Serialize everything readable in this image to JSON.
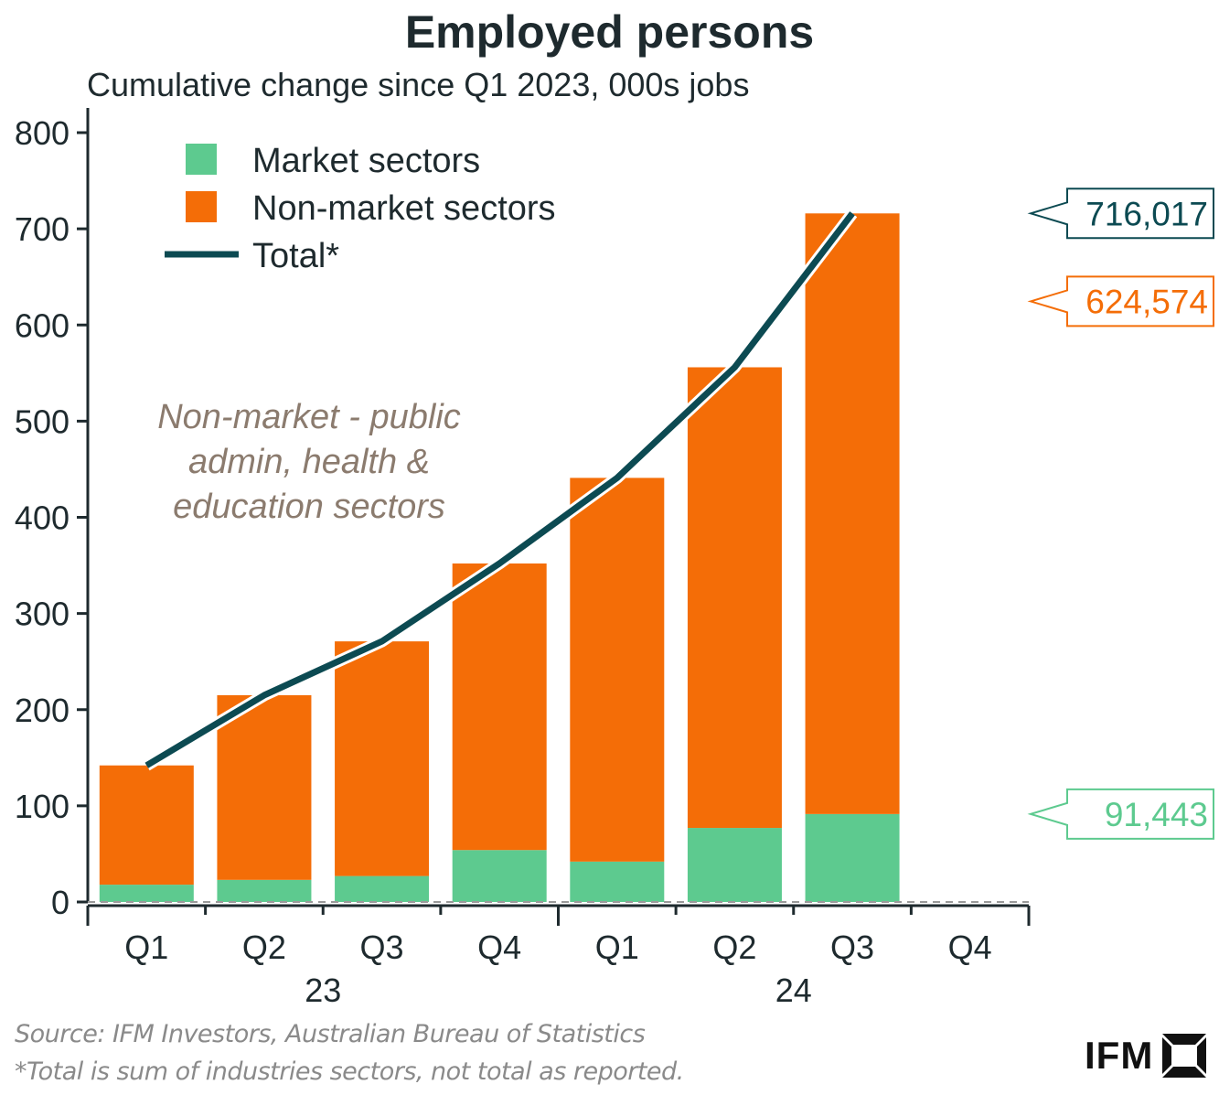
{
  "chart_data": {
    "type": "bar",
    "stacked": true,
    "title": "Employed persons",
    "subtitle": "Cumulative change since Q1 2023, 000s jobs",
    "categories": [
      "Q1",
      "Q2",
      "Q3",
      "Q4",
      "Q1",
      "Q2",
      "Q3",
      "Q4"
    ],
    "year_groups": [
      {
        "label": "23",
        "span": 4
      },
      {
        "label": "24",
        "span": 4
      }
    ],
    "ylim": [
      0,
      800
    ],
    "yticks": [
      0,
      100,
      200,
      300,
      400,
      500,
      600,
      700,
      800
    ],
    "series": [
      {
        "name": "Market sectors",
        "color": "#5dca8f",
        "values": [
          18,
          23,
          27,
          54,
          42,
          77,
          91.443,
          null
        ]
      },
      {
        "name": "Non-market sectors",
        "color": "#f46d07",
        "values": [
          124,
          192,
          244,
          298,
          399,
          479,
          624.574,
          null
        ]
      }
    ],
    "line": {
      "name": "Total*",
      "color": "#0c4a52",
      "values": [
        142,
        215,
        271,
        352,
        441,
        556,
        716.017,
        null
      ]
    },
    "legend": {
      "position": "top-left"
    },
    "annotation": [
      "Non-market - public",
      "admin, health &",
      "education sectors"
    ],
    "callouts": [
      {
        "label": "716,017",
        "value": 716.017,
        "color": "#0c4a52"
      },
      {
        "label": "624,574",
        "value": 624.574,
        "color": "#f46d07"
      },
      {
        "label": "91,443",
        "value": 91.443,
        "color": "#5dca8f"
      }
    ]
  },
  "footer": {
    "source": "Source: IFM Investors, Australian Bureau of Statistics",
    "footnote": "*Total is sum of industries sectors, not total as reported.",
    "logo_text": "IFM"
  }
}
